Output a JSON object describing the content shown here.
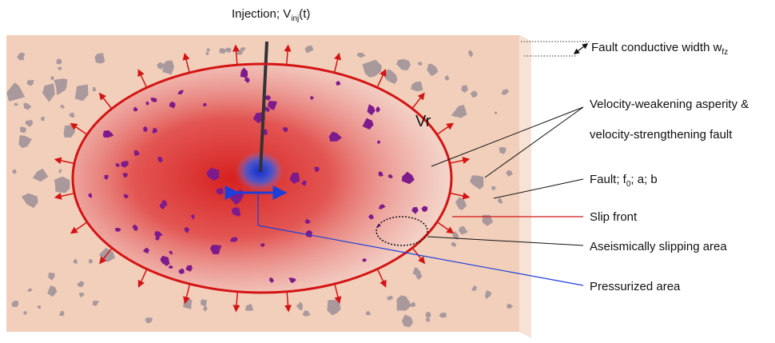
{
  "labels": {
    "injection": "Injection; V",
    "injection_sub": "inj",
    "injection_tail": "(t)",
    "fault_width": "Fault conductive width w",
    "fault_width_sub": "fz",
    "vr": "Vr",
    "asperity_line1": "Velocity-weakening asperity &",
    "asperity_line2": "velocity-strengthening fault",
    "fault_params_a": "Fault; f",
    "fault_params_sub": "0",
    "fault_params_b": "; a; b",
    "slip_front": "Slip front",
    "aseismic": "Aseismically slipping area",
    "pressurized": "Pressurized area"
  },
  "colors": {
    "fault_face": "#f1cfbb",
    "fault_top": "#7a3a10",
    "fault_side": "#f7e3d6",
    "slip_front": "#d41414",
    "pressure_front": "#1d3fd8",
    "asperity": "#7d1a8c",
    "grain": "#a9999d"
  }
}
